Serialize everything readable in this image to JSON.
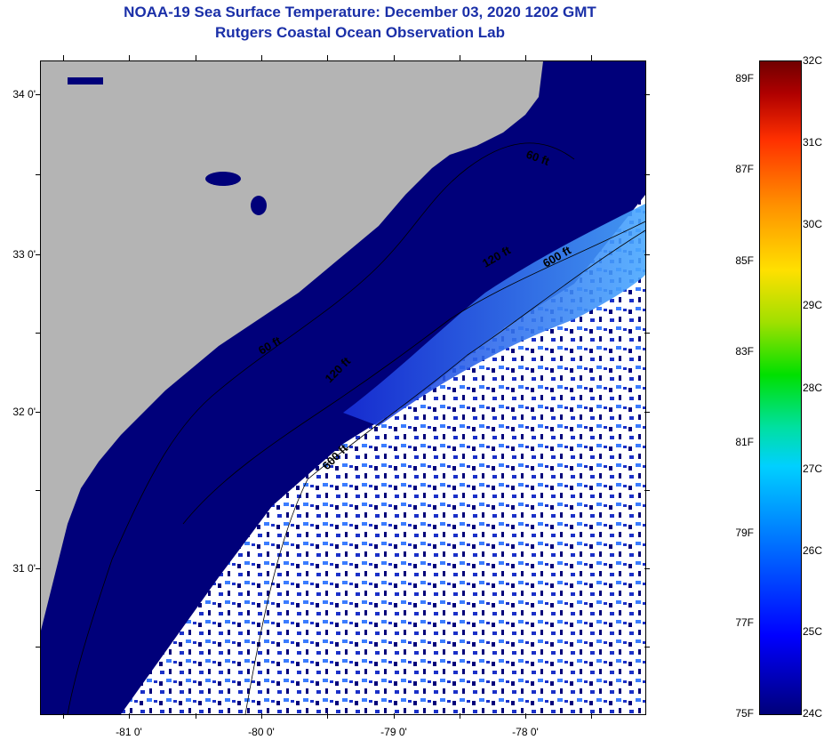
{
  "title": {
    "line1": "NOAA-19 Sea Surface Temperature:  December 03, 2020 1202 GMT",
    "line2": "Rutgers Coastal Ocean Observation Lab"
  },
  "map": {
    "lat_labels": [
      "34 0'",
      "33 0'",
      "32 0'",
      "31 0'"
    ],
    "lon_labels": [
      "-81 0'",
      "-80 0'",
      "-79 0'",
      "-78 0'"
    ],
    "contours": [
      "60 ft",
      "120 ft",
      "600 ft",
      "60 ft",
      "120 ft",
      "600 ft"
    ],
    "colors": {
      "land": "#b4b4b4",
      "ocean_cold": "#00007a",
      "ocean_mid": "#1830e0",
      "ocean_warm": "#3a8cff",
      "cloud": "#ffffff"
    }
  },
  "colorbar": {
    "fahrenheit": [
      "89F",
      "87F",
      "85F",
      "83F",
      "81F",
      "79F",
      "77F",
      "75F"
    ],
    "celsius": [
      "32C",
      "31C",
      "30C",
      "29C",
      "28C",
      "27C",
      "26C",
      "25C",
      "24C"
    ]
  }
}
